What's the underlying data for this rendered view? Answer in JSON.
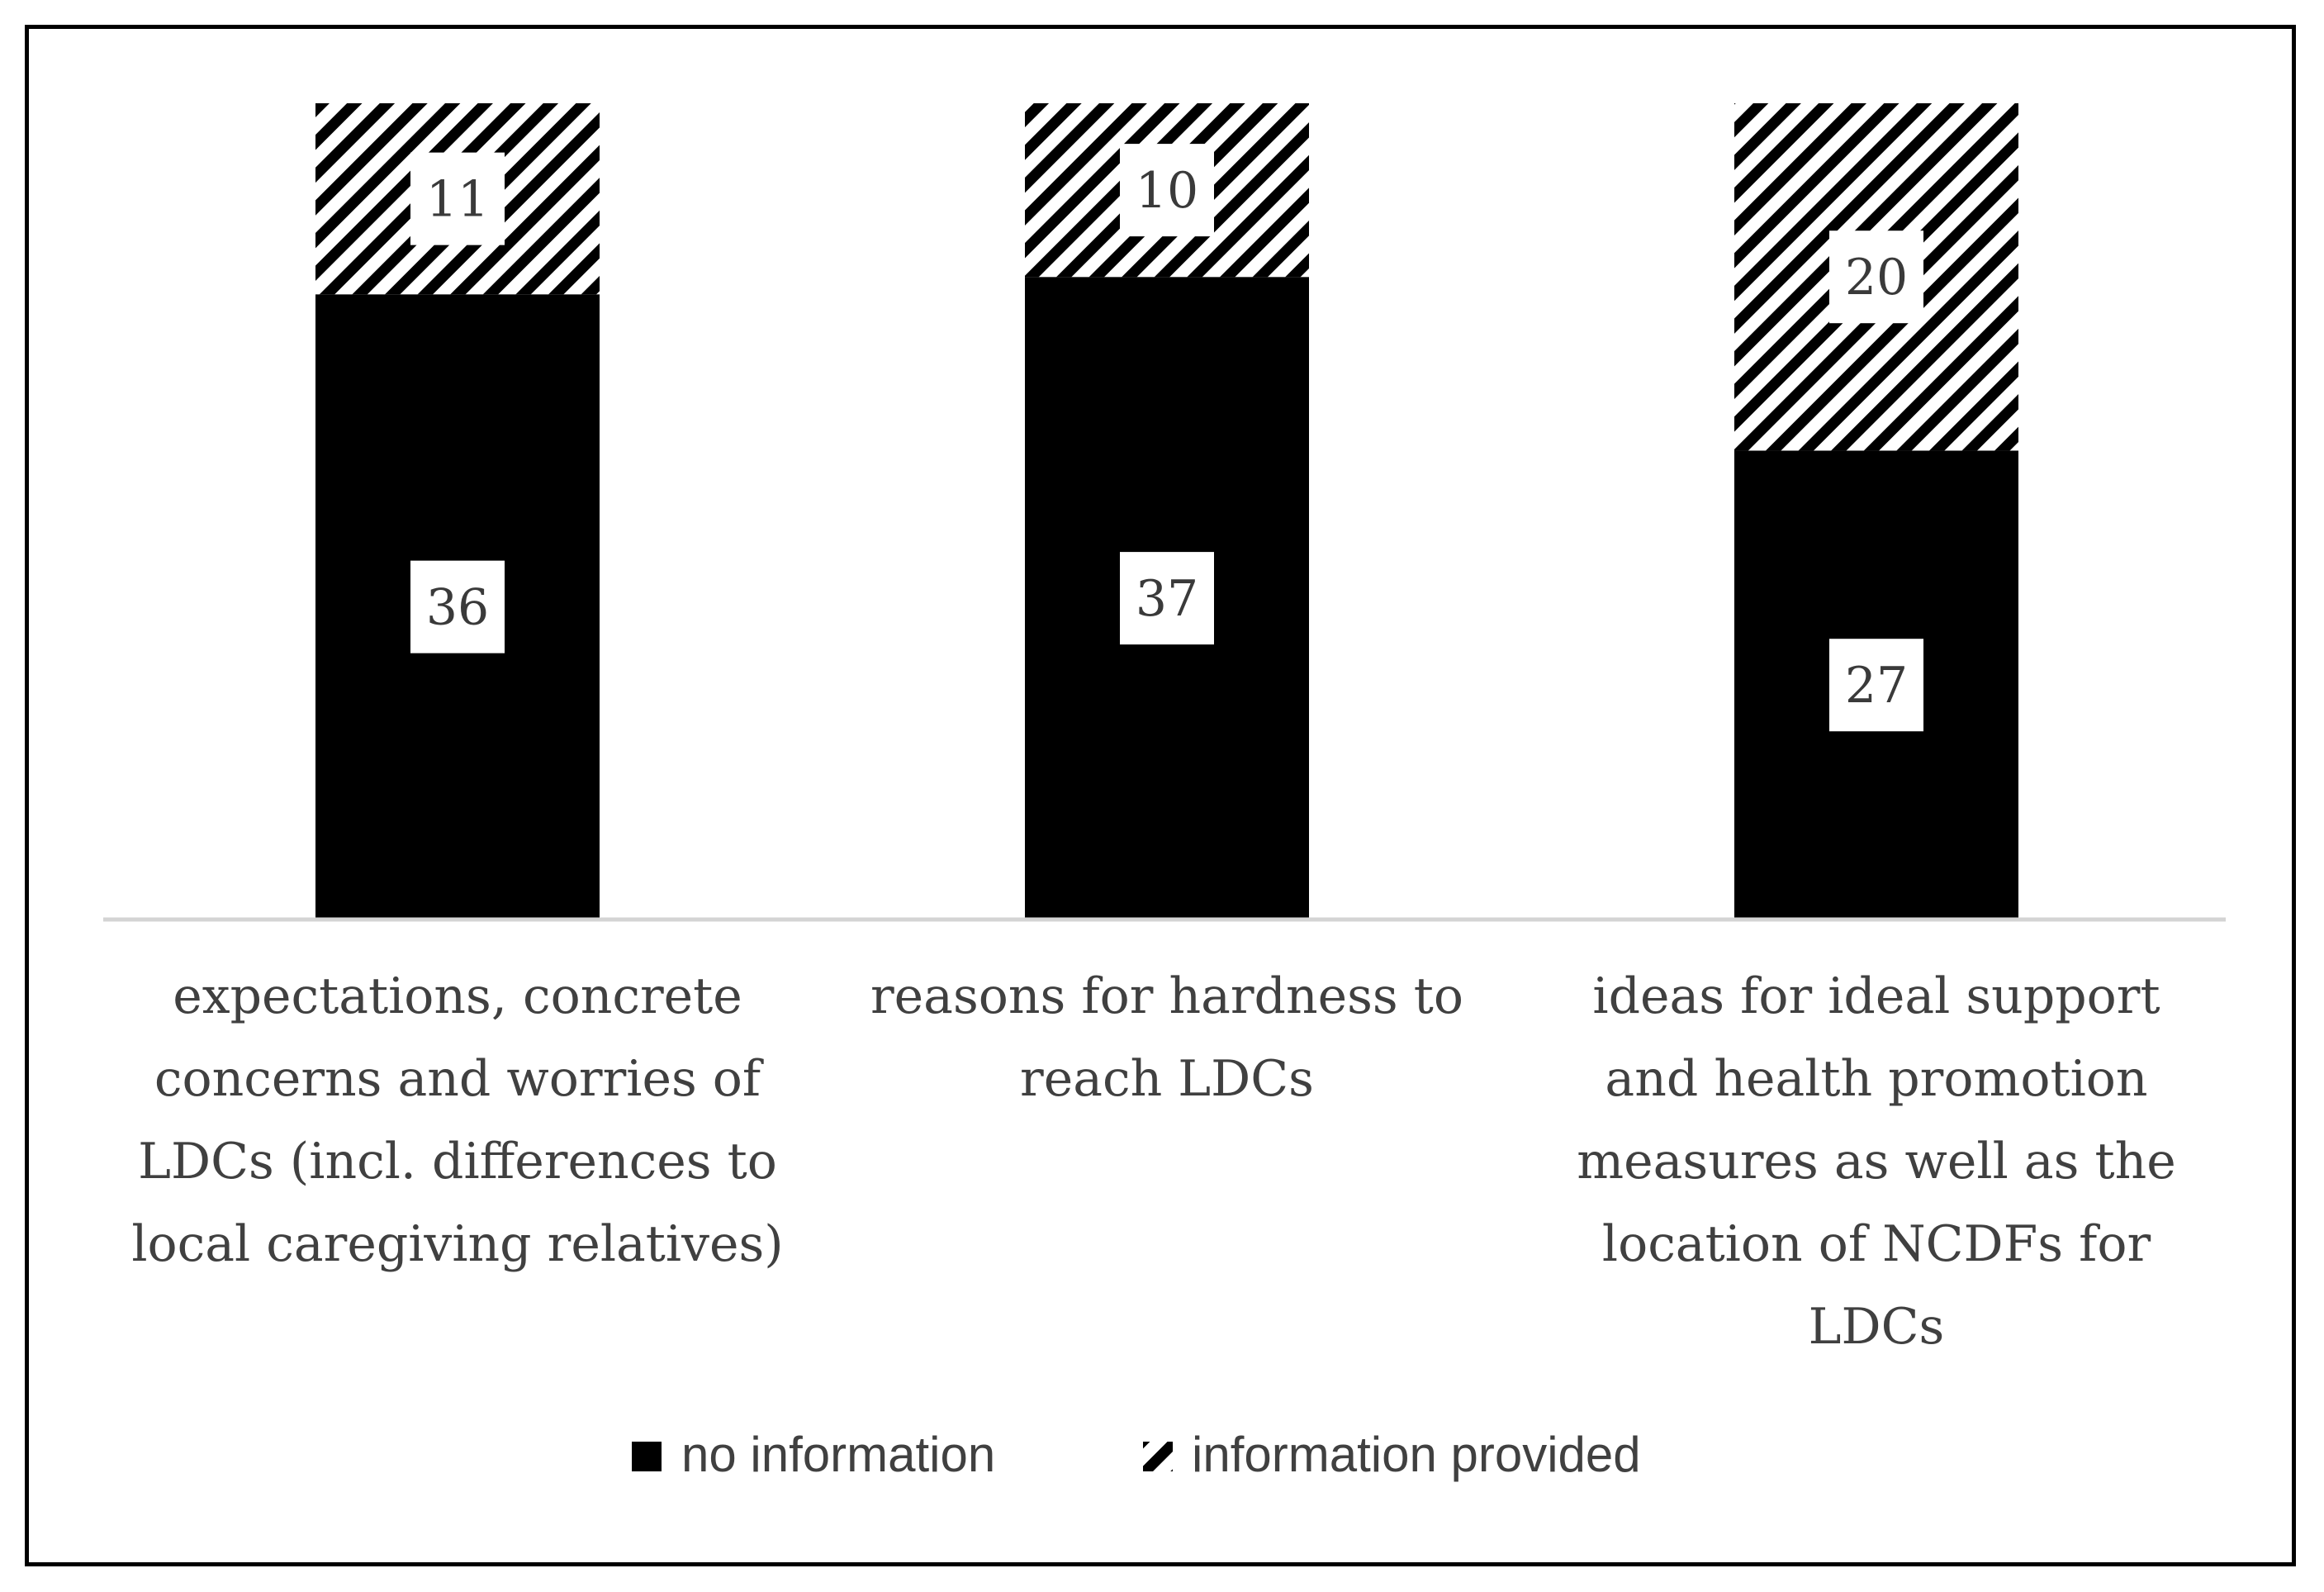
{
  "chart_data": {
    "type": "bar",
    "stacked": true,
    "categories": [
      [
        "expectations, concrete",
        "concerns and worries of",
        "LDCs (incl. differences to",
        "local caregiving relatives)"
      ],
      [
        "reasons for hardness to",
        "reach LDCs"
      ],
      [
        "ideas for ideal support",
        "and health promotion",
        "measures as well as the",
        "location of NCDFs for",
        "LDCs"
      ]
    ],
    "series": [
      {
        "name": "no information",
        "values": [
          36,
          37,
          27
        ],
        "fill": "solid",
        "color": "#000000"
      },
      {
        "name": "information provided",
        "values": [
          11,
          10,
          20
        ],
        "fill": "hatched",
        "color": "#000000"
      }
    ],
    "ylim": [
      0,
      47
    ],
    "grid": false,
    "legend": "bottom",
    "title": "",
    "xlabel": "",
    "ylabel": ""
  }
}
